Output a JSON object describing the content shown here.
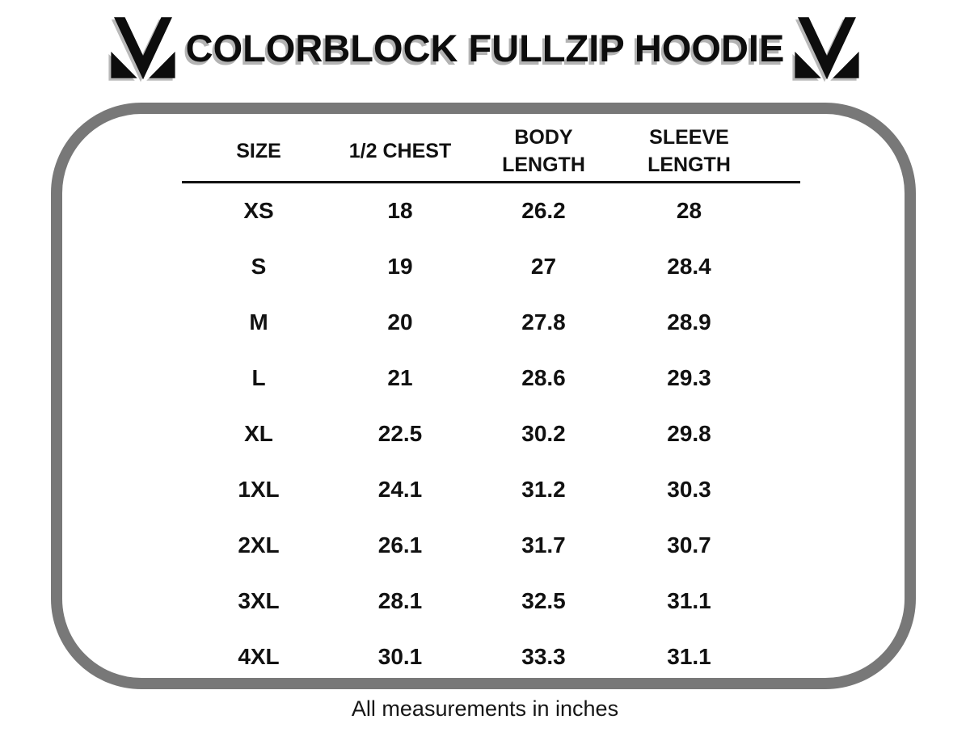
{
  "header": {
    "title": "COLORBLOCK FULLZIP HOODIE",
    "logo_name": "brand-m-logo"
  },
  "table": {
    "columns": [
      {
        "id": "size",
        "lines": [
          "SIZE"
        ]
      },
      {
        "id": "half-chest",
        "lines": [
          "1/2 CHEST"
        ]
      },
      {
        "id": "body-length",
        "lines": [
          "BODY",
          "LENGTH"
        ]
      },
      {
        "id": "sleeve-length",
        "lines": [
          "SLEEVE",
          "LENGTH"
        ]
      }
    ],
    "rows": [
      [
        "XS",
        "18",
        "26.2",
        "28"
      ],
      [
        "S",
        "19",
        "27",
        "28.4"
      ],
      [
        "M",
        "20",
        "27.8",
        "28.9"
      ],
      [
        "L",
        "21",
        "28.6",
        "29.3"
      ],
      [
        "XL",
        "22.5",
        "30.2",
        "29.8"
      ],
      [
        "1XL",
        "24.1",
        "31.2",
        "30.3"
      ],
      [
        "2XL",
        "26.1",
        "31.7",
        "30.7"
      ],
      [
        "3XL",
        "28.1",
        "32.5",
        "31.1"
      ],
      [
        "4XL",
        "30.1",
        "33.3",
        "31.1"
      ]
    ]
  },
  "footer": {
    "note": "All measurements in inches"
  },
  "colors": {
    "background": "#ffffff",
    "text": "#111111",
    "box_border": "#787878",
    "title_shadow": "#b3b3b3",
    "header_rule": "#111111"
  }
}
